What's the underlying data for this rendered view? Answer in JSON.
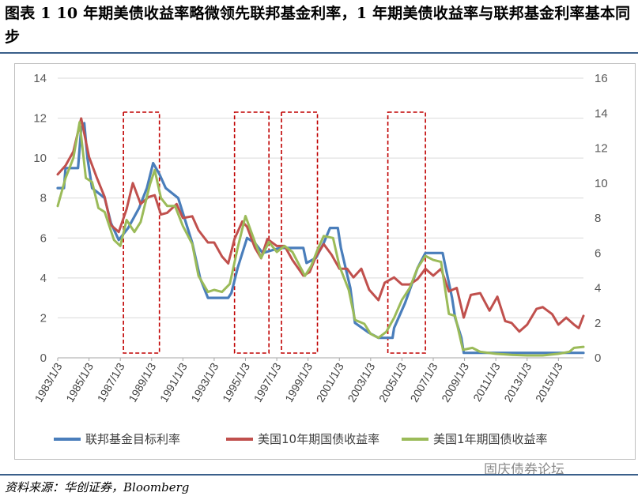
{
  "header": {
    "title": "图表 1    10 年期美债收益率略微领先联邦基金利率，1 年期美债收益率与联邦基金利率基本同步"
  },
  "footer": {
    "source": "资料来源：华创证券，Bloomberg",
    "watermark": "固庆债券论坛"
  },
  "chart_data": {
    "type": "line",
    "title": "",
    "xlabel": "",
    "ylabel": "",
    "x_range": [
      1983.0,
      2016.6
    ],
    "ylim_left": [
      0,
      14
    ],
    "ylim_right": [
      0,
      16
    ],
    "yticks_left": [
      "0",
      "2",
      "4",
      "6",
      "8",
      "10",
      "12",
      "14"
    ],
    "yticks_right": [
      "0",
      "2",
      "4",
      "6",
      "8",
      "10",
      "12",
      "14",
      "16"
    ],
    "xticks": [
      "1983/1/3",
      "1985/1/3",
      "1987/1/3",
      "1989/1/3",
      "1991/1/3",
      "1993/1/3",
      "1995/1/3",
      "1997/1/3",
      "1999/1/3",
      "2001/1/3",
      "2003/1/3",
      "2005/1/3",
      "2007/1/3",
      "2009/1/3",
      "2011/1/3",
      "2013/1/3",
      "2015/1/3"
    ],
    "grid": "horizontal",
    "legend_position": "bottom",
    "highlight_boxes": [
      [
        1987.2,
        1989.5
      ],
      [
        1994.3,
        1996.5
      ],
      [
        1997.3,
        1999.6
      ],
      [
        2004.1,
        2006.5
      ]
    ],
    "series": [
      {
        "name": "联邦基金目标利率",
        "color": "#4a7ebb",
        "axis": "left",
        "points": [
          [
            1983.0,
            8.5
          ],
          [
            1983.4,
            8.5
          ],
          [
            1983.5,
            9.5
          ],
          [
            1984.3,
            9.5
          ],
          [
            1984.5,
            11.5
          ],
          [
            1984.7,
            11.75
          ],
          [
            1984.9,
            10
          ],
          [
            1985.2,
            8.5
          ],
          [
            1986.0,
            8
          ],
          [
            1986.4,
            6.75
          ],
          [
            1986.9,
            5.9
          ],
          [
            1987.5,
            6.5
          ],
          [
            1988.2,
            7.5
          ],
          [
            1988.7,
            8.5
          ],
          [
            1989.1,
            9.75
          ],
          [
            1989.5,
            9.2
          ],
          [
            1989.9,
            8.5
          ],
          [
            1990.7,
            8.0
          ],
          [
            1991.1,
            7.0
          ],
          [
            1991.6,
            5.75
          ],
          [
            1992.1,
            4.0
          ],
          [
            1992.6,
            3.0
          ],
          [
            1993.4,
            3.0
          ],
          [
            1993.9,
            3.0
          ],
          [
            1994.1,
            3.25
          ],
          [
            1994.5,
            4.5
          ],
          [
            1995.1,
            6.0
          ],
          [
            1995.6,
            5.75
          ],
          [
            1996.1,
            5.25
          ],
          [
            1997.2,
            5.5
          ],
          [
            1998.7,
            5.5
          ],
          [
            1998.9,
            4.75
          ],
          [
            1999.5,
            5.0
          ],
          [
            2000.0,
            5.75
          ],
          [
            2000.4,
            6.5
          ],
          [
            2000.9,
            6.5
          ],
          [
            2001.1,
            5.5
          ],
          [
            2001.7,
            3.5
          ],
          [
            2002.0,
            1.75
          ],
          [
            2002.9,
            1.25
          ],
          [
            2003.5,
            1.0
          ],
          [
            2004.4,
            1.0
          ],
          [
            2004.5,
            1.5
          ],
          [
            2005.2,
            2.75
          ],
          [
            2006.0,
            4.5
          ],
          [
            2006.5,
            5.25
          ],
          [
            2007.6,
            5.25
          ],
          [
            2007.8,
            4.5
          ],
          [
            2008.2,
            3.0
          ],
          [
            2008.4,
            2.0
          ],
          [
            2008.8,
            1.0
          ],
          [
            2008.95,
            0.25
          ],
          [
            2016.6,
            0.25
          ]
        ]
      },
      {
        "name": "美国10年期国债收益率",
        "color": "#c0504d",
        "axis": "right",
        "points": [
          [
            1983.0,
            10.5
          ],
          [
            1983.5,
            11.0
          ],
          [
            1984.0,
            11.8
          ],
          [
            1984.5,
            13.7
          ],
          [
            1985.0,
            11.5
          ],
          [
            1985.5,
            10.3
          ],
          [
            1986.0,
            9.2
          ],
          [
            1986.4,
            7.6
          ],
          [
            1986.9,
            7.2
          ],
          [
            1987.4,
            8.5
          ],
          [
            1987.8,
            10.0
          ],
          [
            1988.3,
            8.8
          ],
          [
            1988.8,
            9.2
          ],
          [
            1989.2,
            9.3
          ],
          [
            1989.6,
            8.2
          ],
          [
            1990.0,
            8.3
          ],
          [
            1990.6,
            8.8
          ],
          [
            1991.0,
            8.0
          ],
          [
            1991.6,
            8.1
          ],
          [
            1992.0,
            7.3
          ],
          [
            1992.6,
            6.6
          ],
          [
            1993.0,
            6.6
          ],
          [
            1993.5,
            5.8
          ],
          [
            1993.9,
            5.4
          ],
          [
            1994.3,
            6.8
          ],
          [
            1994.8,
            7.8
          ],
          [
            1995.1,
            7.5
          ],
          [
            1995.6,
            6.3
          ],
          [
            1996.0,
            5.7
          ],
          [
            1996.4,
            6.8
          ],
          [
            1997.0,
            6.4
          ],
          [
            1997.5,
            6.4
          ],
          [
            1998.0,
            5.6
          ],
          [
            1998.7,
            4.7
          ],
          [
            1999.1,
            4.9
          ],
          [
            1999.5,
            5.8
          ],
          [
            2000.0,
            6.5
          ],
          [
            2000.5,
            5.9
          ],
          [
            2001.0,
            5.1
          ],
          [
            2001.5,
            5.1
          ],
          [
            2001.9,
            4.6
          ],
          [
            2002.4,
            5.1
          ],
          [
            2002.9,
            3.9
          ],
          [
            2003.5,
            3.3
          ],
          [
            2003.9,
            4.3
          ],
          [
            2004.5,
            4.6
          ],
          [
            2005.0,
            4.2
          ],
          [
            2005.5,
            4.2
          ],
          [
            2006.0,
            4.5
          ],
          [
            2006.5,
            5.1
          ],
          [
            2007.0,
            4.7
          ],
          [
            2007.5,
            5.1
          ],
          [
            2008.0,
            3.8
          ],
          [
            2008.5,
            4.0
          ],
          [
            2008.95,
            2.3
          ],
          [
            2009.4,
            3.6
          ],
          [
            2010.0,
            3.7
          ],
          [
            2010.6,
            2.7
          ],
          [
            2011.1,
            3.5
          ],
          [
            2011.6,
            2.1
          ],
          [
            2012.0,
            2.0
          ],
          [
            2012.5,
            1.5
          ],
          [
            2013.0,
            1.9
          ],
          [
            2013.6,
            2.8
          ],
          [
            2014.0,
            2.9
          ],
          [
            2014.6,
            2.5
          ],
          [
            2015.0,
            1.9
          ],
          [
            2015.5,
            2.3
          ],
          [
            2016.0,
            1.9
          ],
          [
            2016.3,
            1.7
          ],
          [
            2016.6,
            2.4
          ]
        ]
      },
      {
        "name": "美国1年期国债收益率",
        "color": "#9bbb59",
        "axis": "left",
        "points": [
          [
            1983.0,
            7.6
          ],
          [
            1983.5,
            9.0
          ],
          [
            1984.0,
            10.0
          ],
          [
            1984.4,
            11.8
          ],
          [
            1984.8,
            9.0
          ],
          [
            1985.2,
            8.8
          ],
          [
            1985.6,
            7.5
          ],
          [
            1986.0,
            7.3
          ],
          [
            1986.6,
            5.9
          ],
          [
            1987.0,
            5.6
          ],
          [
            1987.4,
            6.9
          ],
          [
            1987.9,
            6.3
          ],
          [
            1988.3,
            6.8
          ],
          [
            1988.9,
            8.7
          ],
          [
            1989.2,
            9.4
          ],
          [
            1989.6,
            8.0
          ],
          [
            1990.0,
            7.6
          ],
          [
            1990.5,
            7.6
          ],
          [
            1991.0,
            6.6
          ],
          [
            1991.6,
            5.7
          ],
          [
            1992.0,
            4.1
          ],
          [
            1992.6,
            3.3
          ],
          [
            1993.0,
            3.4
          ],
          [
            1993.5,
            3.3
          ],
          [
            1994.0,
            3.7
          ],
          [
            1994.5,
            5.5
          ],
          [
            1995.0,
            7.1
          ],
          [
            1995.6,
            5.8
          ],
          [
            1996.0,
            5.0
          ],
          [
            1996.5,
            5.8
          ],
          [
            1997.0,
            5.3
          ],
          [
            1997.5,
            5.6
          ],
          [
            1998.0,
            5.3
          ],
          [
            1998.8,
            4.1
          ],
          [
            1999.2,
            4.6
          ],
          [
            1999.6,
            5.4
          ],
          [
            2000.0,
            6.1
          ],
          [
            2000.6,
            6.0
          ],
          [
            2001.0,
            4.6
          ],
          [
            2001.6,
            3.4
          ],
          [
            2002.0,
            1.9
          ],
          [
            2002.6,
            1.7
          ],
          [
            2003.0,
            1.2
          ],
          [
            2003.5,
            1.0
          ],
          [
            2004.0,
            1.3
          ],
          [
            2004.5,
            2.0
          ],
          [
            2005.0,
            2.9
          ],
          [
            2005.5,
            3.5
          ],
          [
            2006.0,
            4.5
          ],
          [
            2006.5,
            5.1
          ],
          [
            2007.0,
            4.9
          ],
          [
            2007.5,
            4.8
          ],
          [
            2008.0,
            2.2
          ],
          [
            2008.4,
            2.1
          ],
          [
            2008.9,
            0.4
          ],
          [
            2009.5,
            0.5
          ],
          [
            2010.0,
            0.3
          ],
          [
            2011.0,
            0.2
          ],
          [
            2012.0,
            0.15
          ],
          [
            2013.0,
            0.12
          ],
          [
            2014.0,
            0.12
          ],
          [
            2015.0,
            0.2
          ],
          [
            2015.7,
            0.3
          ],
          [
            2016.0,
            0.5
          ],
          [
            2016.6,
            0.55
          ]
        ]
      }
    ]
  }
}
